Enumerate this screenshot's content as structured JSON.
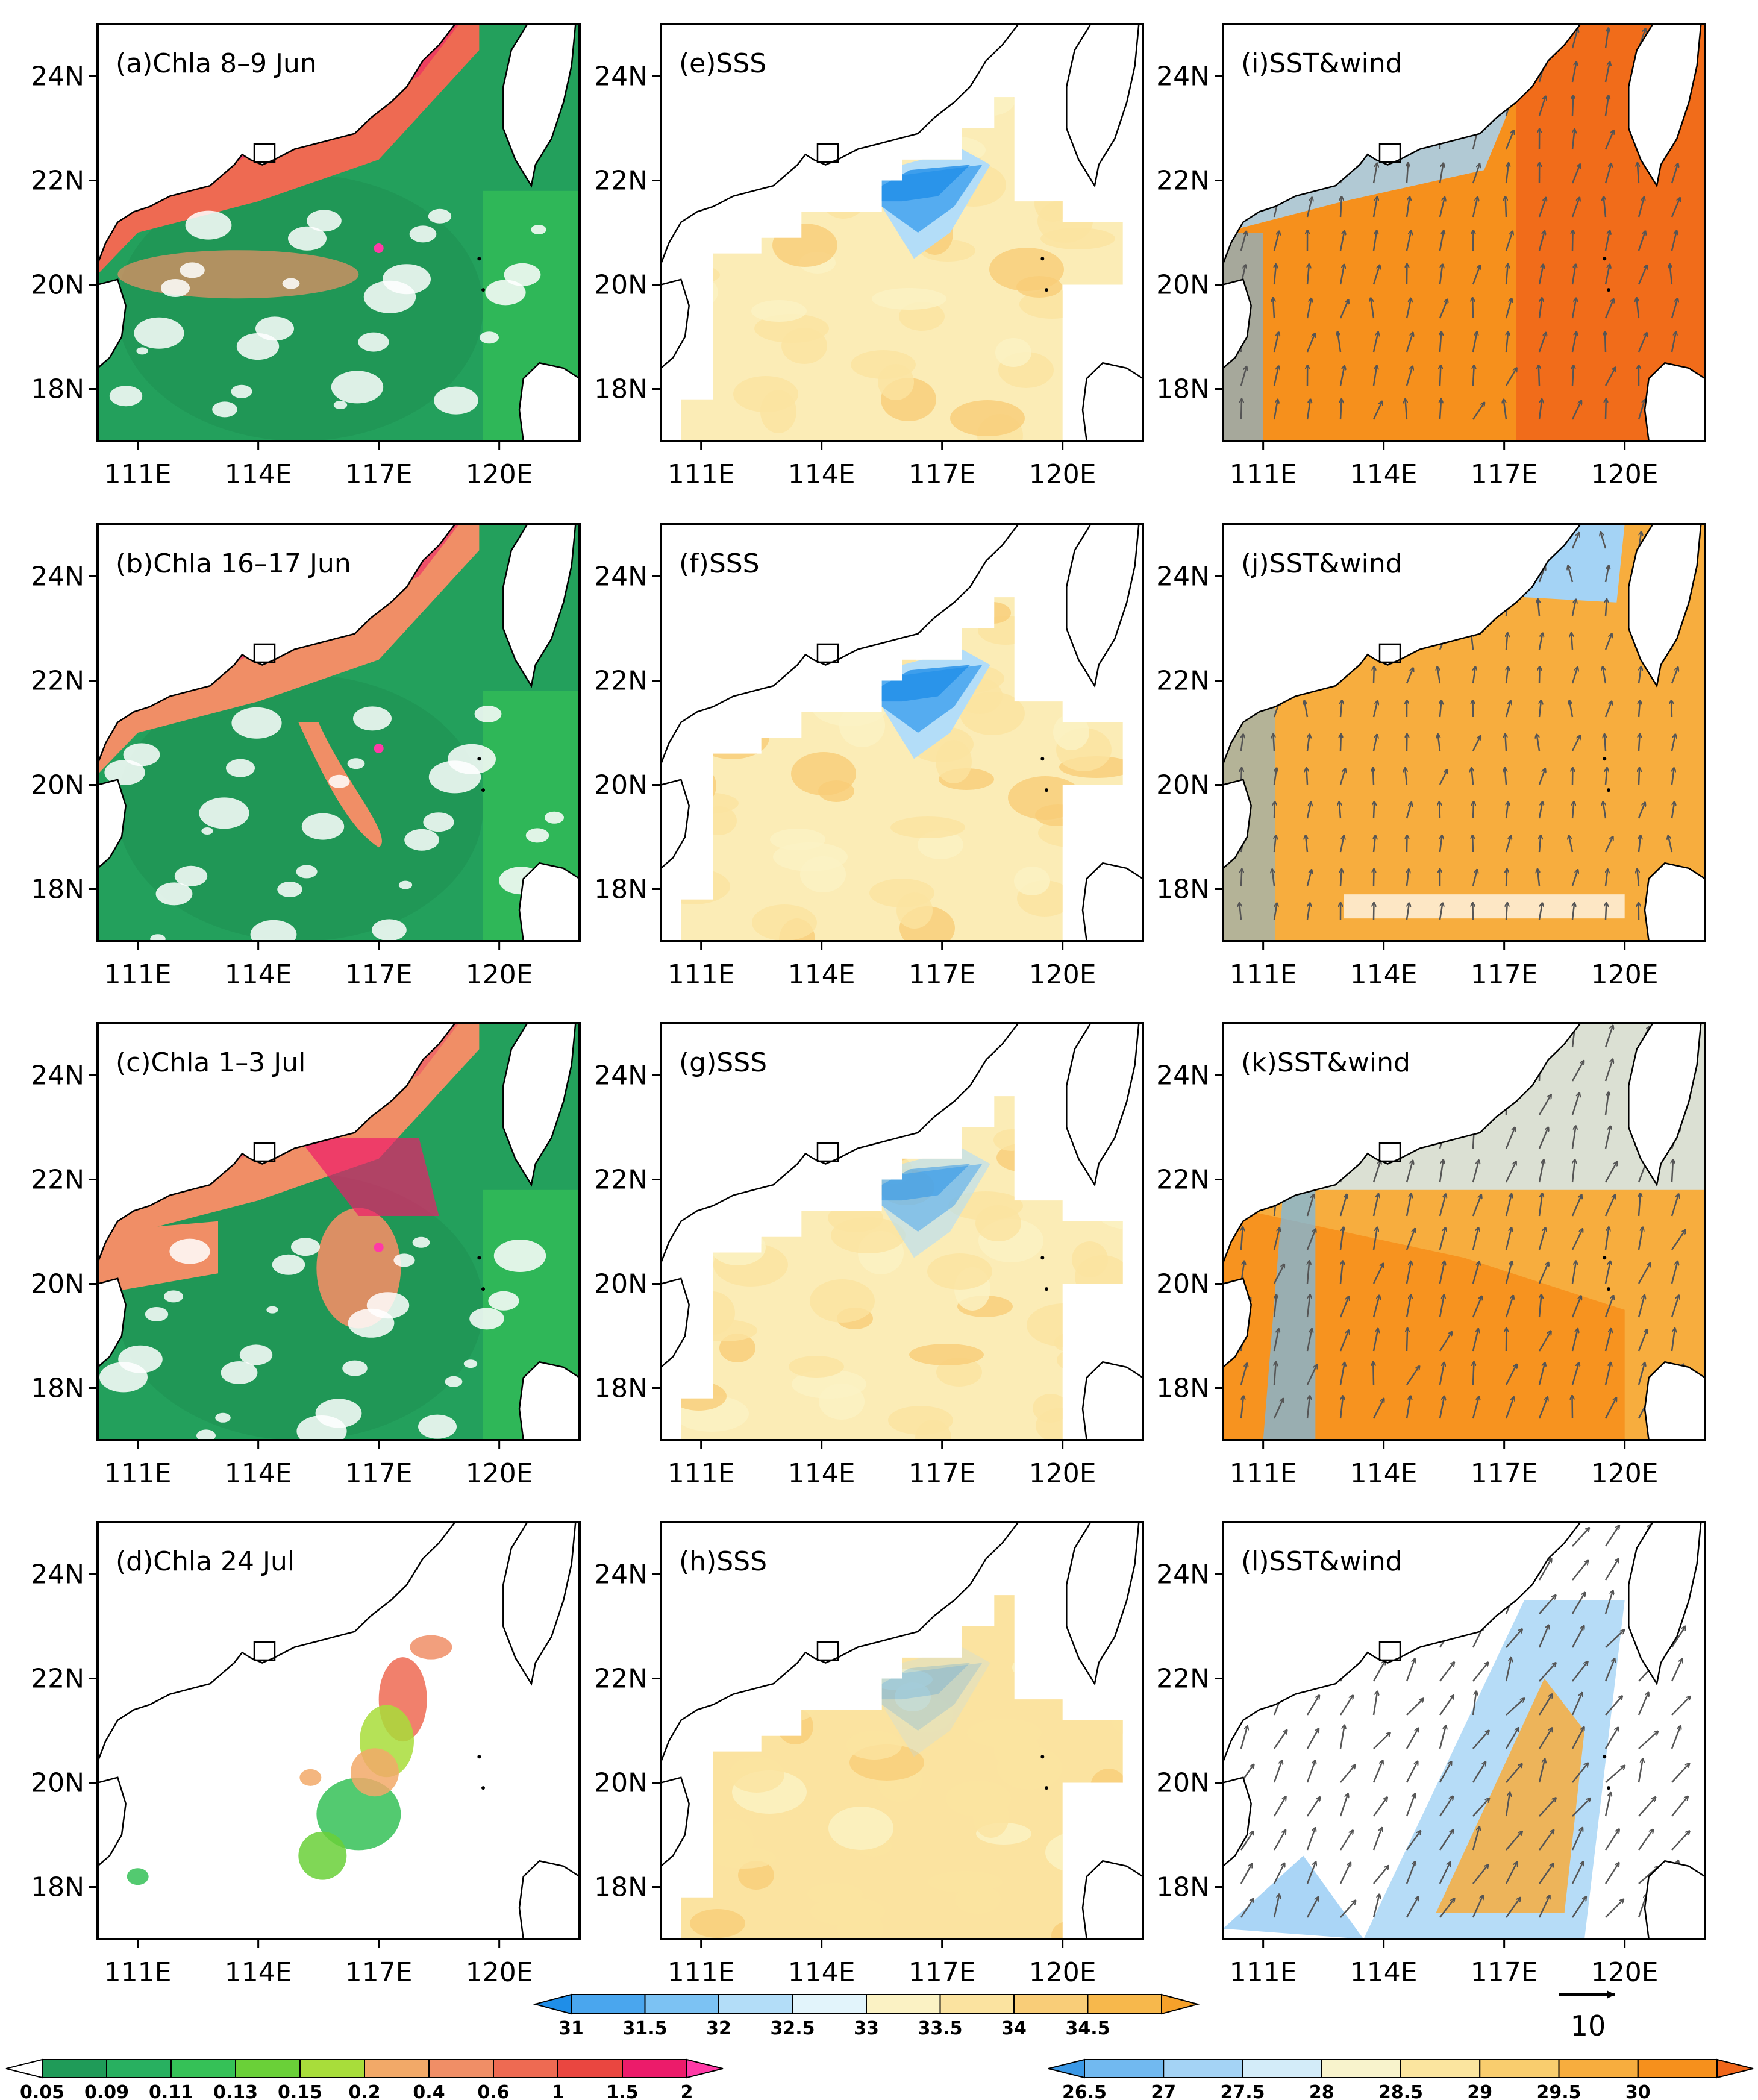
{
  "figure": {
    "axes": {
      "lon_ticks": [
        "111E",
        "114E",
        "117E",
        "120E"
      ],
      "lat_ticks": [
        "24N",
        "22N",
        "20N",
        "18N"
      ],
      "lon_range": [
        110.0,
        122.0
      ],
      "lat_range": [
        17.0,
        25.0
      ]
    },
    "columns": {
      "chla": {
        "panels": [
          {
            "label": "(a)Chla 8–9 Jun"
          },
          {
            "label": "(b)Chla 16–17 Jun"
          },
          {
            "label": "(c)Chla 1–3 Jul"
          },
          {
            "label": "(d)Chla 24 Jul"
          }
        ]
      },
      "sss": {
        "panels": [
          {
            "label": "(e)SSS"
          },
          {
            "label": "(f)SSS"
          },
          {
            "label": "(g)SSS"
          },
          {
            "label": "(h)SSS"
          }
        ]
      },
      "sst": {
        "panels": [
          {
            "label": "(i)SST&wind"
          },
          {
            "label": "(j)SST&wind"
          },
          {
            "label": "(k)SST&wind"
          },
          {
            "label": "(l)SST&wind"
          }
        ]
      }
    },
    "colorbars": {
      "sss": {
        "labels": [
          "31",
          "31.5",
          "32",
          "32.5",
          "33",
          "33.5",
          "34",
          "34.5"
        ],
        "colors": [
          "#1f8ee8",
          "#4aa6ee",
          "#7cc2f3",
          "#b3ddf8",
          "#e2f4fb",
          "#fbf2c4",
          "#fbe3a0",
          "#f9cd78",
          "#f7b84c",
          "#f6a12a"
        ]
      },
      "chla": {
        "labels": [
          "0.05",
          "0.09",
          "0.11",
          "0.13",
          "0.15",
          "0.2",
          "0.4",
          "0.6",
          "1",
          "1.5",
          "2"
        ],
        "colors": [
          "#ffffff",
          "#1f9b58",
          "#28b060",
          "#35c157",
          "#6ad038",
          "#a8dd3a",
          "#f2a968",
          "#f08e66",
          "#ee6a52",
          "#ea4640",
          "#ec1b6a",
          "#ff3aa6"
        ]
      },
      "sst": {
        "labels": [
          "26.5",
          "27",
          "27.5",
          "28",
          "28.5",
          "29",
          "29.5",
          "30"
        ],
        "colors": [
          "#3a98e6",
          "#71b9f0",
          "#a4d3f5",
          "#d3ecf9",
          "#f8f3cc",
          "#fbe59f",
          "#f9cd6e",
          "#f7ad3e",
          "#f6901c",
          "#f0661a"
        ]
      }
    },
    "wind_legend": {
      "label": "10"
    },
    "colors": {
      "land_outline": "#000000",
      "wind_arrow": "#555555",
      "background": "#ffffff"
    }
  }
}
